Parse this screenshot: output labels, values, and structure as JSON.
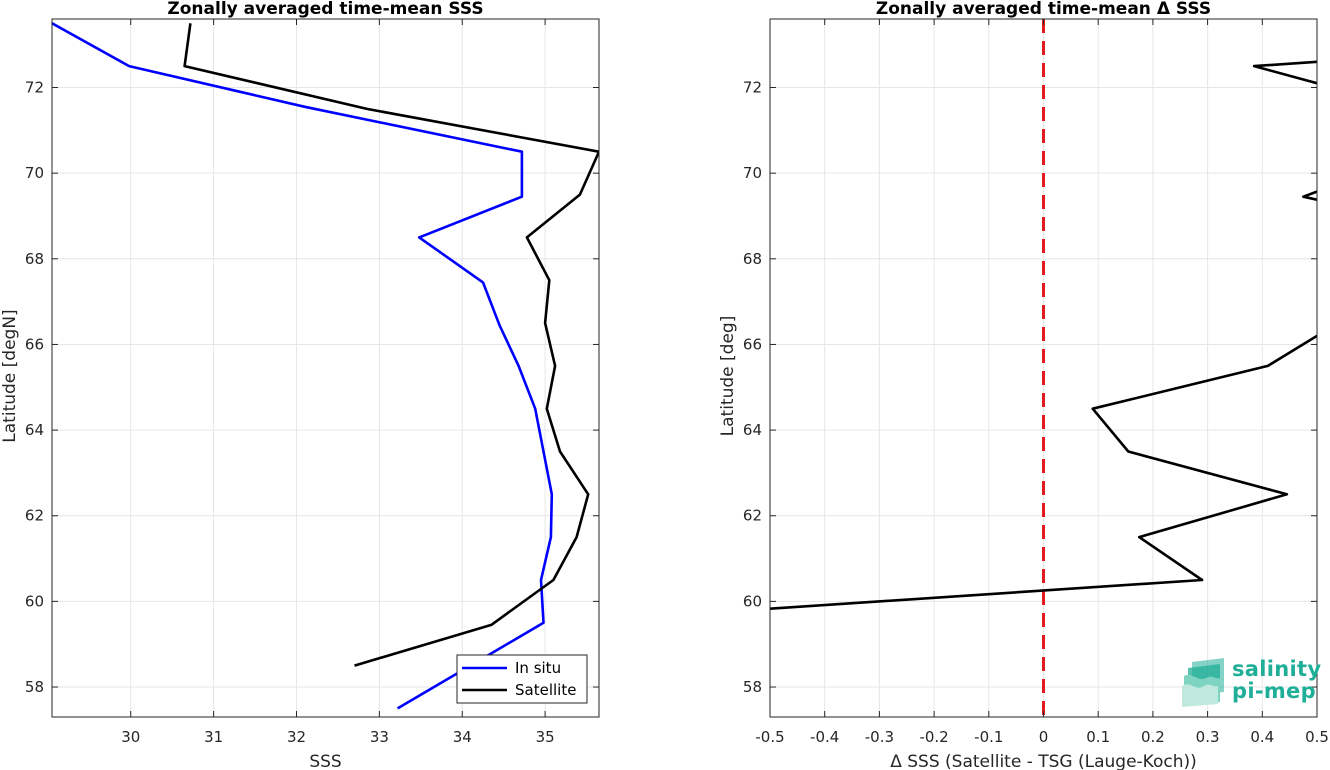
{
  "chart_data": [
    {
      "type": "line",
      "title": "Zonally averaged time-mean SSS",
      "xlabel": "SSS",
      "ylabel": "Latitude [degN]",
      "xlim": [
        29.05,
        35.65
      ],
      "ylim": [
        57.3,
        73.6
      ],
      "xticks": [
        30,
        31,
        32,
        33,
        34,
        35
      ],
      "yticks": [
        58,
        60,
        62,
        64,
        66,
        68,
        70,
        72
      ],
      "grid": true,
      "legend": "bottom-right",
      "series": [
        {
          "name": "In situ",
          "color": "#0000ff",
          "x": [
            29.05,
            29.98,
            32.1,
            34.72,
            34.72,
            33.48,
            34.25,
            34.45,
            34.68,
            34.88,
            35.08,
            35.07,
            34.95,
            34.98,
            33.22
          ],
          "y": [
            73.5,
            72.5,
            71.55,
            70.5,
            69.45,
            68.5,
            67.45,
            66.45,
            65.5,
            64.5,
            62.5,
            61.5,
            60.5,
            59.5,
            57.5
          ]
        },
        {
          "name": "Satellite",
          "color": "#000000",
          "x": [
            30.72,
            30.65,
            32.85,
            35.65,
            35.42,
            34.78,
            35.05,
            35.0,
            35.12,
            35.02,
            35.18,
            35.52,
            35.38,
            35.1,
            34.35,
            32.7
          ],
          "y": [
            73.5,
            72.5,
            71.5,
            70.5,
            69.5,
            68.5,
            67.5,
            66.5,
            65.5,
            64.5,
            63.5,
            62.5,
            61.5,
            60.5,
            59.45,
            58.5
          ]
        }
      ]
    },
    {
      "type": "line",
      "title": "Zonally averaged time-mean Δ SSS",
      "xlabel": "Δ SSS (Satellite - TSG (Lauge-Koch))",
      "ylabel": "Latitude [deg]",
      "xlim": [
        -0.5,
        0.5
      ],
      "ylim": [
        57.3,
        73.6
      ],
      "xticks": [
        -0.5,
        -0.4,
        -0.3,
        -0.2,
        -0.1,
        0,
        0.1,
        0.2,
        0.3,
        0.4,
        0.5
      ],
      "yticks": [
        58,
        60,
        62,
        64,
        66,
        68,
        70,
        72
      ],
      "grid": true,
      "reference_line": {
        "x": 0,
        "color": "#e41a1c",
        "style": "dashed"
      },
      "series": [
        {
          "color": "#000000",
          "x": [
            -0.5,
            0.29,
            0.175,
            0.445,
            0.155,
            0.09,
            0.41,
            0.5
          ],
          "y": [
            59.83,
            60.5,
            61.5,
            62.5,
            63.5,
            64.5,
            65.5,
            66.2
          ]
        },
        {
          "color": "#000000",
          "x": [
            0.5,
            0.475,
            0.5
          ],
          "y": [
            69.57,
            69.45,
            69.38
          ]
        },
        {
          "color": "#000000",
          "x": [
            0.5,
            0.385,
            0.5
          ],
          "y": [
            72.6,
            72.5,
            72.1
          ]
        }
      ]
    }
  ],
  "logo": {
    "line1": "salinity",
    "line2": "pi-mep",
    "color": "#1fae97"
  }
}
